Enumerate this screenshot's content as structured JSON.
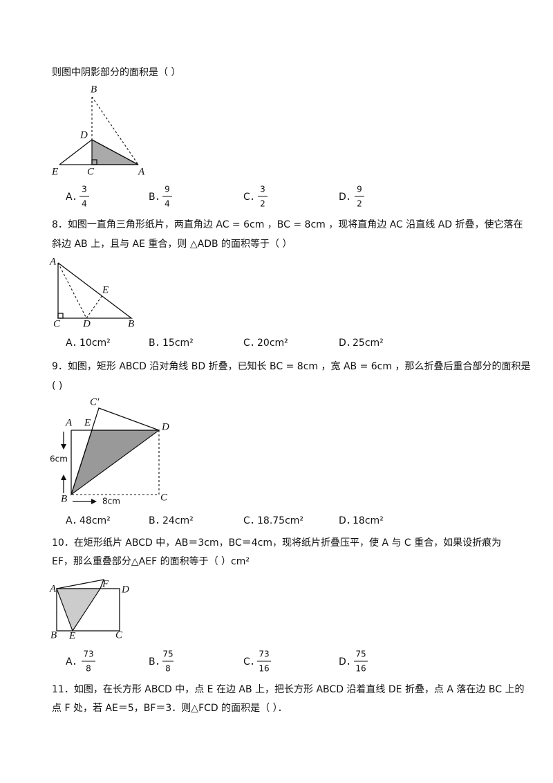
{
  "questions": [
    {
      "lines": [
        "则图中阴影部分的面积是（    ）"
      ],
      "figure": {
        "labels": [
          "B",
          "D",
          "E",
          "C",
          "A"
        ]
      },
      "options": [
        {
          "letter": "A．",
          "num": "3",
          "den": "4"
        },
        {
          "letter": "B．",
          "num": "9",
          "den": "4"
        },
        {
          "letter": "C．",
          "num": "3",
          "den": "2"
        },
        {
          "letter": "D．",
          "num": "9",
          "den": "2"
        }
      ]
    },
    {
      "lines": [
        "8．如图一直角三角形纸片，两直角边 AC = 6cm ，BC = 8cm ，现将直角边 AC 沿直线 AD 折叠，使它落在",
        "斜边 AB 上，且与 AE 重合，则 △ADB 的面积等于（    ）"
      ],
      "figure": {
        "labels": [
          "A",
          "E",
          "C",
          "D",
          "B"
        ]
      },
      "options": [
        {
          "letter": "A．",
          "text": "10cm²"
        },
        {
          "letter": "B．",
          "text": "15cm²"
        },
        {
          "letter": "C．",
          "text": "20cm²"
        },
        {
          "letter": "D．",
          "text": "25cm²"
        }
      ]
    },
    {
      "lines": [
        "9．如图，矩形 ABCD 沿对角线 BD 折叠，已知长 BC = 8cm ，宽 AB = 6cm ，那么折叠后重合部分的面积是",
        "(    )"
      ],
      "figure": {
        "labels": [
          "C′",
          "A",
          "E",
          "D",
          "6cm",
          "B",
          "8cm",
          "C"
        ]
      },
      "options": [
        {
          "letter": "A．",
          "text": "48cm²"
        },
        {
          "letter": "B．",
          "text": "24cm²"
        },
        {
          "letter": "C．",
          "text": "18.75cm²"
        },
        {
          "letter": "D．",
          "text": "18cm²"
        }
      ]
    },
    {
      "lines": [
        "10．在矩形纸片 ABCD 中，AB＝3cm，BC＝4cm，现将纸片折叠压平，使 A 与 C 重合，如果设折痕为",
        "EF，那么重叠部分△AEF 的面积等于（    ）cm²"
      ],
      "figure": {
        "labels": [
          "A",
          "F",
          "D",
          "B",
          "E",
          "C"
        ]
      },
      "options": [
        {
          "letter": "A．",
          "num": "73",
          "den": "8"
        },
        {
          "letter": "B．",
          "num": "75",
          "den": "8"
        },
        {
          "letter": "C．",
          "num": "73",
          "den": "16"
        },
        {
          "letter": "D．",
          "num": "75",
          "den": "16"
        }
      ]
    },
    {
      "lines": [
        "11．如图，在长方形 ABCD 中，点 E 在边 AB 上，把长方形 ABCD 沿着直线 DE 折叠，点 A 落在边 BC 上的",
        "点 F 处，若 AE＝5，BF＝3．则△FCD 的面积是（        ）．"
      ]
    }
  ]
}
